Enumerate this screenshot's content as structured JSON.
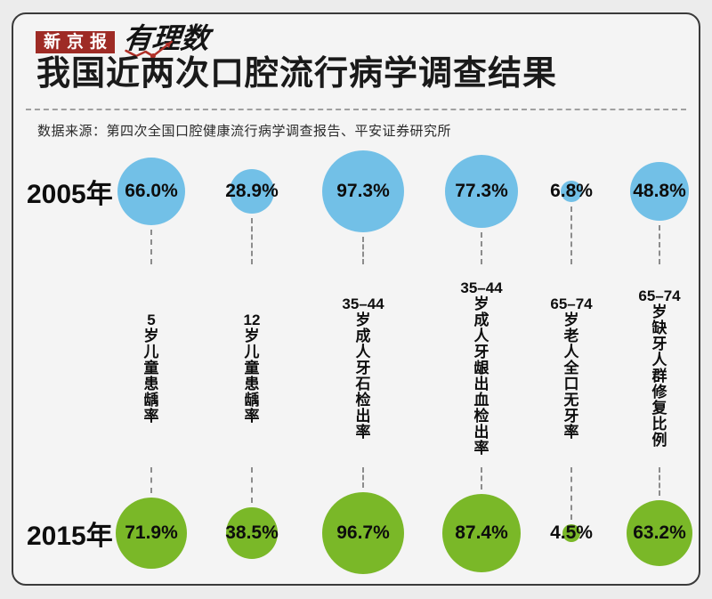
{
  "brand": {
    "boxed": "新京报",
    "script": "有理数"
  },
  "header": {
    "title": "我国近两次口腔流行病学调查结果",
    "source": "数据来源：第四次全国口腔健康流行病学调查报告、平安证券研究所"
  },
  "colors": {
    "bubble_blue": "#72c0e7",
    "bubble_green": "#7ab828",
    "brand_red": "#9e2b25",
    "trend_line_red": "#b03028",
    "dash_gray": "#8c8c8c",
    "text_dark": "#0e0e0e"
  },
  "chart_data": {
    "type": "bubble",
    "title": "我国近两次口腔流行病学调查结果",
    "source": "数据来源：第四次全国口腔健康流行病学调查报告、平安证券研究所",
    "unit": "%",
    "categories": [
      {
        "prefix": "5",
        "chars": "岁儿童患龋率"
      },
      {
        "prefix": "12",
        "chars": "岁儿童患龋率"
      },
      {
        "prefix": "35–44",
        "chars": "岁成人牙石检出率"
      },
      {
        "prefix": "35–44",
        "chars": "岁成人牙龈出血检出率"
      },
      {
        "prefix": "65–74",
        "chars": "岁老人全口无牙率"
      },
      {
        "prefix": "65–74",
        "chars": "岁缺牙人群修复比例"
      }
    ],
    "rows": [
      {
        "label": "2005年",
        "color": "#72c0e7",
        "values": [
          66.0,
          28.9,
          97.3,
          77.3,
          6.8,
          48.8
        ],
        "value_labels": [
          "66.0%",
          "28.9%",
          "97.3%",
          "77.3%",
          "6.8%",
          "48.8%"
        ]
      },
      {
        "label": "2015年",
        "color": "#7ab828",
        "values": [
          71.9,
          38.5,
          96.7,
          87.4,
          4.5,
          63.2
        ],
        "value_labels": [
          "71.9%",
          "38.5%",
          "96.7%",
          "87.4%",
          "4.5%",
          "63.2%"
        ]
      }
    ],
    "legend_position": "left-row-labels",
    "grid": false
  }
}
